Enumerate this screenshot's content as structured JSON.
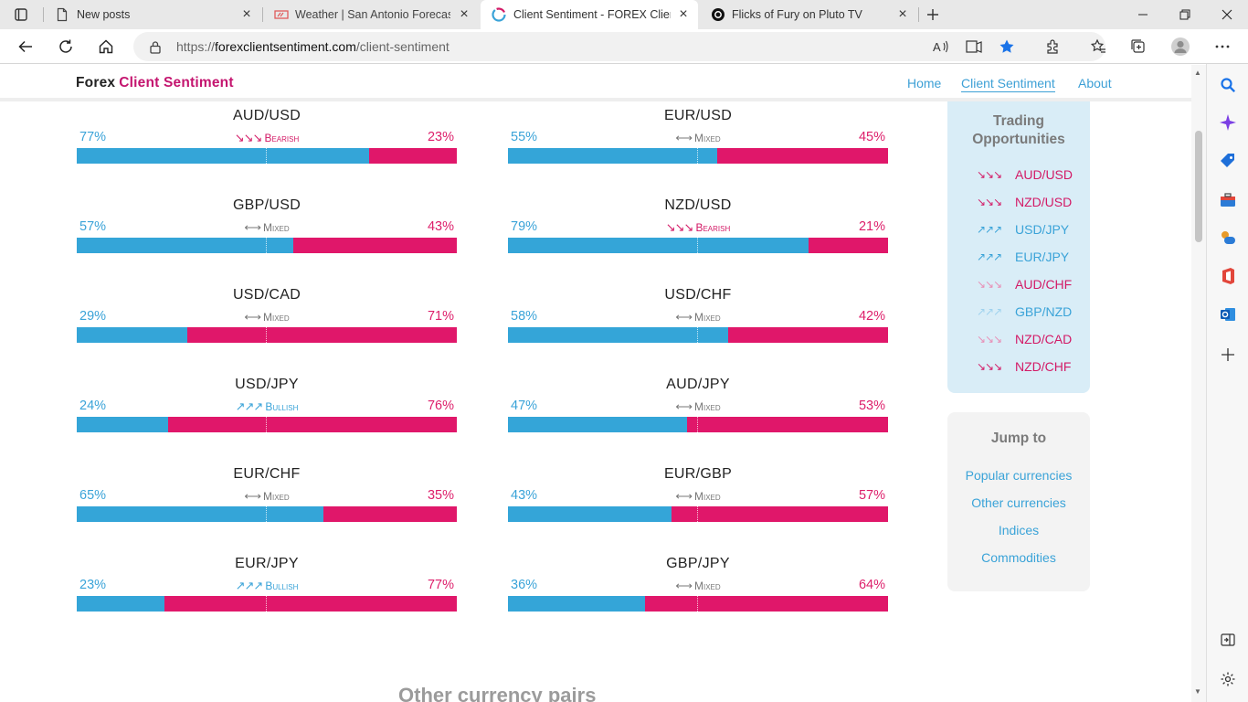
{
  "browser": {
    "tabs": [
      {
        "title": "New posts",
        "active": false
      },
      {
        "title": "Weather | San Antonio Forecast,",
        "active": false
      },
      {
        "title": "Client Sentiment - FOREX Client",
        "active": true
      },
      {
        "title": "Flicks of Fury on Pluto TV",
        "active": false
      }
    ],
    "url": {
      "scheme": "https://",
      "host": "forexclientsentiment.com",
      "path": "/client-sentiment"
    }
  },
  "site": {
    "brand": "Forex",
    "brand_accent": "Client Sentiment",
    "nav": [
      "Home",
      "Client Sentiment",
      "About"
    ]
  },
  "pairs": [
    {
      "name": "AUD/USD",
      "long": "77%",
      "short": "23%",
      "long_value": 77,
      "sentiment": "Bearish",
      "arrows": "↘↘↘"
    },
    {
      "name": "EUR/USD",
      "long": "55%",
      "short": "45%",
      "long_value": 55,
      "sentiment": "Mixed",
      "arrows": "⟷"
    },
    {
      "name": "GBP/USD",
      "long": "57%",
      "short": "43%",
      "long_value": 57,
      "sentiment": "Mixed",
      "arrows": "⟷"
    },
    {
      "name": "NZD/USD",
      "long": "79%",
      "short": "21%",
      "long_value": 79,
      "sentiment": "Bearish",
      "arrows": "↘↘↘"
    },
    {
      "name": "USD/CAD",
      "long": "29%",
      "short": "71%",
      "long_value": 29,
      "sentiment": "Mixed",
      "arrows": "⟷"
    },
    {
      "name": "USD/CHF",
      "long": "58%",
      "short": "42%",
      "long_value": 58,
      "sentiment": "Mixed",
      "arrows": "⟷"
    },
    {
      "name": "USD/JPY",
      "long": "24%",
      "short": "76%",
      "long_value": 24,
      "sentiment": "Bullish",
      "arrows": "↗↗↗"
    },
    {
      "name": "AUD/JPY",
      "long": "47%",
      "short": "53%",
      "long_value": 47,
      "sentiment": "Mixed",
      "arrows": "⟷"
    },
    {
      "name": "EUR/CHF",
      "long": "65%",
      "short": "35%",
      "long_value": 65,
      "sentiment": "Mixed",
      "arrows": "⟷"
    },
    {
      "name": "EUR/GBP",
      "long": "43%",
      "short": "57%",
      "long_value": 43,
      "sentiment": "Mixed",
      "arrows": "⟷"
    },
    {
      "name": "EUR/JPY",
      "long": "23%",
      "short": "77%",
      "long_value": 23,
      "sentiment": "Bullish",
      "arrows": "↗↗↗"
    },
    {
      "name": "GBP/JPY",
      "long": "36%",
      "short": "64%",
      "long_value": 36,
      "sentiment": "Mixed",
      "arrows": "⟷"
    }
  ],
  "trading_opportunities": {
    "title": "Trading Opportunities",
    "items": [
      {
        "pair": "AUD/USD",
        "arrows": "↘↘↘",
        "kind": "bear"
      },
      {
        "pair": "NZD/USD",
        "arrows": "↘↘↘",
        "kind": "bear"
      },
      {
        "pair": "USD/JPY",
        "arrows": "↗↗↗",
        "kind": "bull"
      },
      {
        "pair": "EUR/JPY",
        "arrows": "↗↗↗",
        "kind": "bull"
      },
      {
        "pair": "AUD/CHF",
        "arrows": "↘↘↘",
        "kind": "weak-bear"
      },
      {
        "pair": "GBP/NZD",
        "arrows": "↗↗↗",
        "kind": "weak-bull"
      },
      {
        "pair": "NZD/CAD",
        "arrows": "↘↘↘",
        "kind": "weak-bear"
      },
      {
        "pair": "NZD/CHF",
        "arrows": "↘↘↘",
        "kind": "bear"
      }
    ]
  },
  "jump_to": {
    "title": "Jump to",
    "links": [
      "Popular currencies",
      "Other currencies",
      "Indices",
      "Commodities"
    ]
  },
  "section_title": "Other currency pairs",
  "colors": {
    "long": "#34a5d8",
    "short": "#e0176a",
    "brand_accent": "#c4156f",
    "opp_bg": "#d9edf7"
  }
}
